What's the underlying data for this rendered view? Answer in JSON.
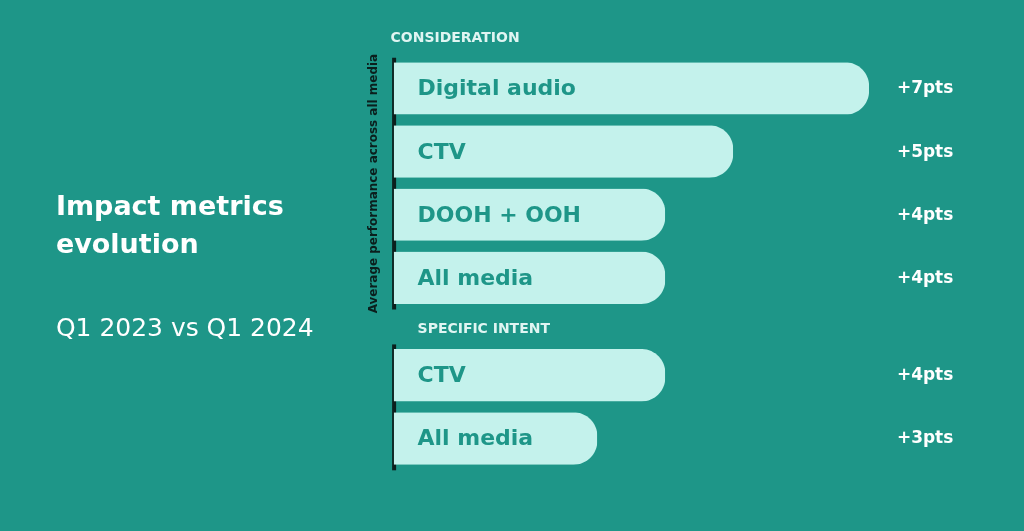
{
  "chart_data": [
    {
      "type": "other",
      "title": "Impact metrics evolution",
      "subtitle": "Q1 2023 vs Q1 2024"
    },
    {
      "type": "bar",
      "orientation": "horizontal",
      "title": "CONSIDERATION",
      "ylabel": "Average performance across all media",
      "categories": [
        "Digital audio",
        "CTV",
        "DOOH + OOH",
        "All media"
      ],
      "values": [
        7,
        5,
        4,
        4
      ],
      "value_labels": [
        "+7pts",
        "+5pts",
        "+4pts",
        "+4pts"
      ],
      "color": "#c4f2ec",
      "tick_labels": false
    },
    {
      "type": "bar",
      "orientation": "horizontal",
      "title": "SPECIFIC INTENT",
      "categories": [
        "CTV",
        "All media"
      ],
      "values": [
        4,
        3
      ],
      "value_labels": [
        "+4pts",
        "+3pts"
      ],
      "color": "#c4f2ec",
      "tick_labels": false
    }
  ]
}
